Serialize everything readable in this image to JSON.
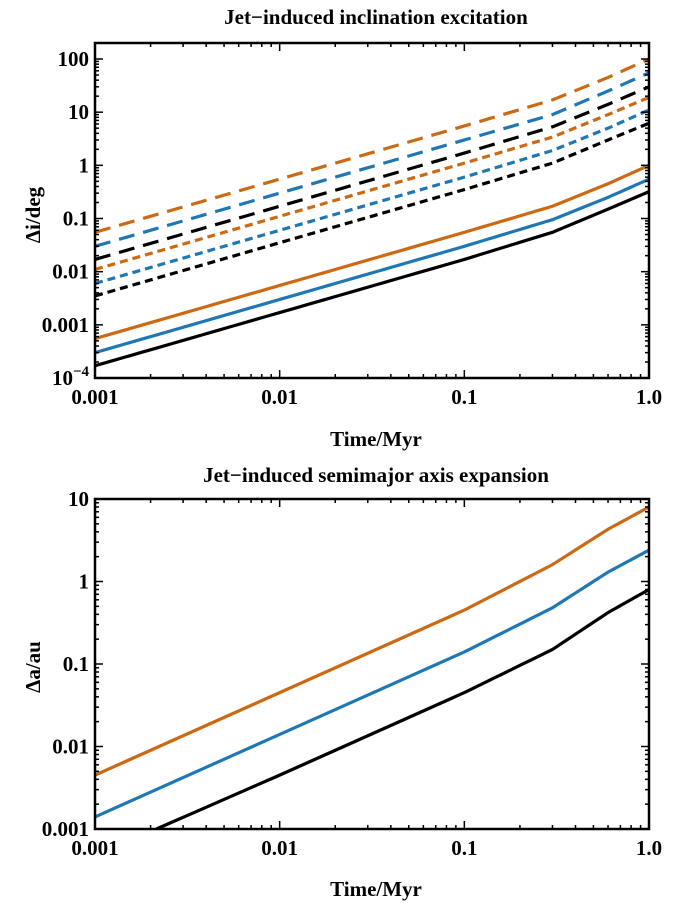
{
  "colors": {
    "black": "#000000",
    "blue": "#1f77b4",
    "orange": "#cc6a14"
  },
  "chart_data": [
    {
      "type": "line",
      "title": "Jet−induced inclination excitation",
      "xlabel": "Time/Myr",
      "ylabel": "Δi/deg",
      "xscale": "log",
      "yscale": "log",
      "xlim": [
        0.001,
        1.0
      ],
      "ylim": [
        0.0001,
        200
      ],
      "x_ticks": [
        0.001,
        0.01,
        0.1,
        1.0
      ],
      "x_tick_labels": [
        "0.001",
        "0.01",
        "0.1",
        "1.0"
      ],
      "y_ticks": [
        0.0001,
        0.001,
        0.01,
        0.1,
        1,
        10,
        100
      ],
      "y_tick_labels": [
        "10−4",
        "0.001",
        "0.01",
        "0.1",
        "1",
        "10",
        "100"
      ],
      "grid": false,
      "series": [
        {
          "color": "orange",
          "dash": "long",
          "x": [
            0.001,
            0.01,
            0.1,
            0.3,
            0.6,
            1.0
          ],
          "y": [
            0.055,
            0.55,
            5.5,
            17,
            45,
            100
          ]
        },
        {
          "color": "blue",
          "dash": "long",
          "x": [
            0.001,
            0.01,
            0.1,
            0.3,
            0.6,
            1.0
          ],
          "y": [
            0.03,
            0.3,
            3.0,
            9,
            25,
            55
          ]
        },
        {
          "color": "black",
          "dash": "long",
          "x": [
            0.001,
            0.01,
            0.1,
            0.3,
            0.6,
            1.0
          ],
          "y": [
            0.017,
            0.17,
            1.7,
            5.3,
            14,
            30
          ]
        },
        {
          "color": "orange",
          "dash": "short",
          "x": [
            0.001,
            0.01,
            0.1,
            0.3,
            0.6,
            1.0
          ],
          "y": [
            0.011,
            0.11,
            1.1,
            3.4,
            9,
            19
          ]
        },
        {
          "color": "blue",
          "dash": "short",
          "x": [
            0.001,
            0.01,
            0.1,
            0.3,
            0.6,
            1.0
          ],
          "y": [
            0.006,
            0.06,
            0.6,
            1.9,
            5,
            11
          ]
        },
        {
          "color": "black",
          "dash": "short",
          "x": [
            0.001,
            0.01,
            0.1,
            0.3,
            0.6,
            1.0
          ],
          "y": [
            0.0035,
            0.035,
            0.35,
            1.1,
            3,
            6.2
          ]
        },
        {
          "color": "orange",
          "dash": "solid",
          "x": [
            0.001,
            0.01,
            0.1,
            0.3,
            0.6,
            1.0
          ],
          "y": [
            0.00055,
            0.0055,
            0.055,
            0.17,
            0.45,
            1.0
          ]
        },
        {
          "color": "blue",
          "dash": "solid",
          "x": [
            0.001,
            0.01,
            0.1,
            0.3,
            0.6,
            1.0
          ],
          "y": [
            0.0003,
            0.003,
            0.03,
            0.095,
            0.25,
            0.55
          ]
        },
        {
          "color": "black",
          "dash": "solid",
          "x": [
            0.001,
            0.01,
            0.1,
            0.3,
            0.6,
            1.0
          ],
          "y": [
            0.00017,
            0.0017,
            0.017,
            0.055,
            0.15,
            0.32
          ]
        }
      ]
    },
    {
      "type": "line",
      "title": "Jet−induced semimajor axis expansion",
      "xlabel": "Time/Myr",
      "ylabel": "Δa/au",
      "xscale": "log",
      "yscale": "log",
      "xlim": [
        0.001,
        1.0
      ],
      "ylim": [
        0.001,
        10
      ],
      "x_ticks": [
        0.001,
        0.01,
        0.1,
        1.0
      ],
      "x_tick_labels": [
        "0.001",
        "0.01",
        "0.1",
        "1.0"
      ],
      "y_ticks": [
        0.001,
        0.01,
        0.1,
        1,
        10
      ],
      "y_tick_labels": [
        "0.001",
        "0.01",
        "0.1",
        "1",
        "10"
      ],
      "grid": false,
      "series": [
        {
          "color": "orange",
          "dash": "solid",
          "x": [
            0.001,
            0.01,
            0.1,
            0.3,
            0.6,
            1.0
          ],
          "y": [
            0.0045,
            0.045,
            0.45,
            1.6,
            4.3,
            8.0
          ]
        },
        {
          "color": "blue",
          "dash": "solid",
          "x": [
            0.001,
            0.01,
            0.1,
            0.3,
            0.6,
            1.0
          ],
          "y": [
            0.0014,
            0.014,
            0.14,
            0.48,
            1.3,
            2.4
          ]
        },
        {
          "color": "black",
          "dash": "solid",
          "x": [
            0.00215,
            0.01,
            0.1,
            0.3,
            0.6,
            1.0
          ],
          "y": [
            0.001,
            0.0045,
            0.045,
            0.15,
            0.42,
            0.8
          ]
        }
      ]
    }
  ]
}
